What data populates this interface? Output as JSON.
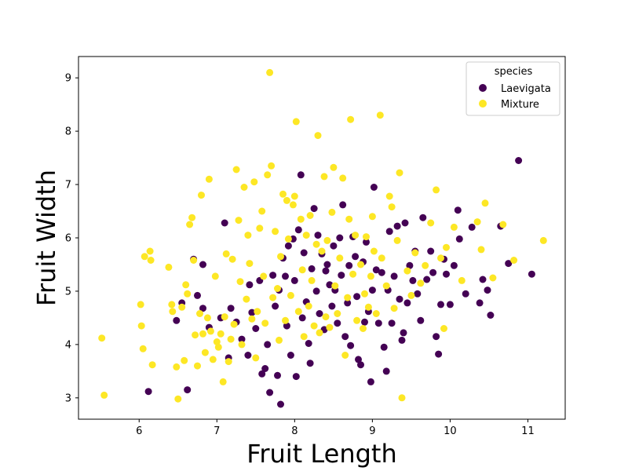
{
  "chart_data": {
    "type": "scatter",
    "title": "",
    "xlabel": "Fruit Length",
    "ylabel": "Fruit Width",
    "xlim": [
      5.22,
      11.48
    ],
    "ylim": [
      2.6,
      9.4
    ],
    "xticks": [
      6,
      7,
      8,
      9,
      10,
      11
    ],
    "yticks": [
      3,
      4,
      5,
      6,
      7,
      8,
      9
    ],
    "grid": false,
    "legend": {
      "title": "species",
      "placement": "top-right"
    },
    "series": [
      {
        "name": "Laevigata",
        "color": "#440154",
        "points": [
          [
            6.12,
            3.12
          ],
          [
            6.48,
            4.45
          ],
          [
            6.62,
            3.15
          ],
          [
            6.55,
            4.78
          ],
          [
            6.75,
            4.92
          ],
          [
            6.82,
            4.68
          ],
          [
            6.9,
            4.32
          ],
          [
            6.7,
            5.6
          ],
          [
            6.82,
            5.5
          ],
          [
            7.05,
            4.5
          ],
          [
            7.1,
            6.28
          ],
          [
            7.15,
            3.75
          ],
          [
            7.18,
            4.68
          ],
          [
            7.25,
            4.42
          ],
          [
            7.4,
            3.8
          ],
          [
            7.32,
            4.1
          ],
          [
            7.45,
            4.6
          ],
          [
            7.42,
            5.12
          ],
          [
            7.5,
            4.3
          ],
          [
            7.55,
            5.2
          ],
          [
            7.58,
            3.45
          ],
          [
            7.62,
            3.55
          ],
          [
            7.65,
            4.0
          ],
          [
            7.68,
            3.1
          ],
          [
            7.72,
            5.3
          ],
          [
            7.75,
            4.72
          ],
          [
            7.78,
            3.42
          ],
          [
            7.8,
            5.02
          ],
          [
            7.82,
            2.88
          ],
          [
            7.85,
            5.62
          ],
          [
            7.88,
            5.28
          ],
          [
            7.9,
            4.35
          ],
          [
            7.92,
            5.85
          ],
          [
            7.95,
            3.8
          ],
          [
            7.98,
            5.98
          ],
          [
            8.0,
            5.2
          ],
          [
            8.02,
            3.4
          ],
          [
            8.05,
            6.15
          ],
          [
            8.08,
            7.18
          ],
          [
            8.1,
            4.5
          ],
          [
            8.12,
            5.72
          ],
          [
            8.15,
            4.8
          ],
          [
            8.18,
            4.02
          ],
          [
            8.2,
            3.65
          ],
          [
            8.22,
            5.42
          ],
          [
            8.25,
            6.55
          ],
          [
            8.28,
            5.0
          ],
          [
            8.3,
            6.05
          ],
          [
            8.32,
            4.58
          ],
          [
            8.35,
            5.7
          ],
          [
            8.38,
            4.28
          ],
          [
            8.4,
            5.38
          ],
          [
            8.42,
            5.5
          ],
          [
            8.45,
            5.12
          ],
          [
            8.48,
            4.72
          ],
          [
            8.5,
            5.85
          ],
          [
            8.52,
            5.02
          ],
          [
            8.55,
            4.4
          ],
          [
            8.58,
            6.0
          ],
          [
            8.6,
            5.3
          ],
          [
            8.62,
            6.62
          ],
          [
            8.65,
            4.15
          ],
          [
            8.68,
            4.78
          ],
          [
            8.7,
            5.48
          ],
          [
            8.72,
            3.98
          ],
          [
            8.75,
            6.02
          ],
          [
            8.78,
            5.65
          ],
          [
            8.8,
            4.9
          ],
          [
            8.82,
            3.72
          ],
          [
            8.85,
            3.62
          ],
          [
            8.88,
            5.55
          ],
          [
            8.9,
            4.42
          ],
          [
            8.92,
            5.92
          ],
          [
            8.95,
            4.62
          ],
          [
            8.98,
            3.3
          ],
          [
            9.0,
            5.02
          ],
          [
            9.02,
            6.95
          ],
          [
            9.05,
            5.4
          ],
          [
            9.08,
            4.4
          ],
          [
            9.12,
            5.35
          ],
          [
            9.15,
            3.95
          ],
          [
            9.18,
            3.5
          ],
          [
            9.2,
            5.02
          ],
          [
            9.22,
            6.12
          ],
          [
            9.25,
            4.4
          ],
          [
            9.28,
            5.28
          ],
          [
            9.32,
            6.22
          ],
          [
            9.35,
            4.85
          ],
          [
            9.38,
            4.08
          ],
          [
            9.4,
            4.22
          ],
          [
            9.42,
            6.28
          ],
          [
            9.45,
            4.78
          ],
          [
            9.48,
            5.48
          ],
          [
            9.52,
            5.2
          ],
          [
            9.55,
            5.75
          ],
          [
            9.58,
            4.95
          ],
          [
            9.62,
            4.45
          ],
          [
            9.65,
            6.38
          ],
          [
            9.7,
            5.22
          ],
          [
            9.75,
            5.75
          ],
          [
            9.78,
            5.35
          ],
          [
            9.82,
            4.15
          ],
          [
            9.85,
            3.82
          ],
          [
            9.88,
            4.75
          ],
          [
            9.92,
            5.6
          ],
          [
            9.95,
            5.32
          ],
          [
            10.0,
            4.75
          ],
          [
            10.05,
            5.48
          ],
          [
            10.1,
            6.52
          ],
          [
            10.12,
            5.98
          ],
          [
            10.2,
            4.95
          ],
          [
            10.28,
            6.2
          ],
          [
            10.38,
            4.78
          ],
          [
            10.42,
            5.22
          ],
          [
            10.48,
            5.02
          ],
          [
            10.52,
            4.55
          ],
          [
            10.65,
            6.22
          ],
          [
            10.75,
            5.52
          ],
          [
            10.88,
            7.45
          ],
          [
            11.05,
            5.32
          ]
        ]
      },
      {
        "name": "Mixture",
        "color": "#fde725",
        "points": [
          [
            5.52,
            4.12
          ],
          [
            5.55,
            3.05
          ],
          [
            6.02,
            4.75
          ],
          [
            6.03,
            4.35
          ],
          [
            6.05,
            3.92
          ],
          [
            6.07,
            5.65
          ],
          [
            6.14,
            5.75
          ],
          [
            6.15,
            5.58
          ],
          [
            6.17,
            3.62
          ],
          [
            6.38,
            5.45
          ],
          [
            6.42,
            4.75
          ],
          [
            6.43,
            4.62
          ],
          [
            6.48,
            3.58
          ],
          [
            6.5,
            2.98
          ],
          [
            6.55,
            4.7
          ],
          [
            6.58,
            3.7
          ],
          [
            6.6,
            5.12
          ],
          [
            6.62,
            4.95
          ],
          [
            6.65,
            6.25
          ],
          [
            6.68,
            6.38
          ],
          [
            6.7,
            5.58
          ],
          [
            6.72,
            4.18
          ],
          [
            6.75,
            3.6
          ],
          [
            6.78,
            4.58
          ],
          [
            6.8,
            6.8
          ],
          [
            6.82,
            4.2
          ],
          [
            6.85,
            3.85
          ],
          [
            6.88,
            4.5
          ],
          [
            6.9,
            7.1
          ],
          [
            6.92,
            4.25
          ],
          [
            6.95,
            3.72
          ],
          [
            6.98,
            5.28
          ],
          [
            7.0,
            4.05
          ],
          [
            7.02,
            3.95
          ],
          [
            7.05,
            4.2
          ],
          [
            7.08,
            3.3
          ],
          [
            7.1,
            4.52
          ],
          [
            7.12,
            5.7
          ],
          [
            7.15,
            3.68
          ],
          [
            7.18,
            4.1
          ],
          [
            7.2,
            5.6
          ],
          [
            7.22,
            4.38
          ],
          [
            7.25,
            7.28
          ],
          [
            7.28,
            6.33
          ],
          [
            7.3,
            5.18
          ],
          [
            7.32,
            4.0
          ],
          [
            7.35,
            6.95
          ],
          [
            7.38,
            4.85
          ],
          [
            7.4,
            6.05
          ],
          [
            7.42,
            5.52
          ],
          [
            7.45,
            4.48
          ],
          [
            7.48,
            7.05
          ],
          [
            7.5,
            3.75
          ],
          [
            7.52,
            4.62
          ],
          [
            7.55,
            6.18
          ],
          [
            7.58,
            6.5
          ],
          [
            7.6,
            5.28
          ],
          [
            7.62,
            4.4
          ],
          [
            7.65,
            7.18
          ],
          [
            7.68,
            9.1
          ],
          [
            7.7,
            7.35
          ],
          [
            7.72,
            4.88
          ],
          [
            7.75,
            6.12
          ],
          [
            7.78,
            5.05
          ],
          [
            7.8,
            4.08
          ],
          [
            7.82,
            5.65
          ],
          [
            7.85,
            6.82
          ],
          [
            7.88,
            4.45
          ],
          [
            7.9,
            6.7
          ],
          [
            7.92,
            5.98
          ],
          [
            7.95,
            4.92
          ],
          [
            7.98,
            6.62
          ],
          [
            8.0,
            6.78
          ],
          [
            8.02,
            8.18
          ],
          [
            8.05,
            4.62
          ],
          [
            8.08,
            6.35
          ],
          [
            8.1,
            5.4
          ],
          [
            8.12,
            4.15
          ],
          [
            8.15,
            6.05
          ],
          [
            8.18,
            4.72
          ],
          [
            8.2,
            6.42
          ],
          [
            8.22,
            5.2
          ],
          [
            8.25,
            4.35
          ],
          [
            8.28,
            5.88
          ],
          [
            8.3,
            7.92
          ],
          [
            8.32,
            4.22
          ],
          [
            8.35,
            5.75
          ],
          [
            8.38,
            7.15
          ],
          [
            8.4,
            4.52
          ],
          [
            8.42,
            5.95
          ],
          [
            8.45,
            4.32
          ],
          [
            8.48,
            6.48
          ],
          [
            8.5,
            7.32
          ],
          [
            8.52,
            5.1
          ],
          [
            8.55,
            4.58
          ],
          [
            8.58,
            5.62
          ],
          [
            8.62,
            7.12
          ],
          [
            8.65,
            3.8
          ],
          [
            8.68,
            4.88
          ],
          [
            8.7,
            6.35
          ],
          [
            8.72,
            8.22
          ],
          [
            8.75,
            5.32
          ],
          [
            8.78,
            6.05
          ],
          [
            8.8,
            4.45
          ],
          [
            8.85,
            5.5
          ],
          [
            8.88,
            4.3
          ],
          [
            8.9,
            4.95
          ],
          [
            8.92,
            6.02
          ],
          [
            8.95,
            4.7
          ],
          [
            8.98,
            5.28
          ],
          [
            9.0,
            6.4
          ],
          [
            9.02,
            5.75
          ],
          [
            9.05,
            4.58
          ],
          [
            9.1,
            8.3
          ],
          [
            9.12,
            5.62
          ],
          [
            9.18,
            5.1
          ],
          [
            9.22,
            6.78
          ],
          [
            9.25,
            6.58
          ],
          [
            9.28,
            4.68
          ],
          [
            9.32,
            5.95
          ],
          [
            9.35,
            7.22
          ],
          [
            9.38,
            3.0
          ],
          [
            9.45,
            5.38
          ],
          [
            9.5,
            4.92
          ],
          [
            9.55,
            5.72
          ],
          [
            9.62,
            5.15
          ],
          [
            9.68,
            5.48
          ],
          [
            9.75,
            6.28
          ],
          [
            9.82,
            6.9
          ],
          [
            9.88,
            5.62
          ],
          [
            9.92,
            4.3
          ],
          [
            9.95,
            5.82
          ],
          [
            10.05,
            6.2
          ],
          [
            10.15,
            5.2
          ],
          [
            10.35,
            6.3
          ],
          [
            10.4,
            5.78
          ],
          [
            10.45,
            6.65
          ],
          [
            10.55,
            5.25
          ],
          [
            10.68,
            6.25
          ],
          [
            10.82,
            5.58
          ],
          [
            11.2,
            5.95
          ]
        ]
      }
    ]
  }
}
